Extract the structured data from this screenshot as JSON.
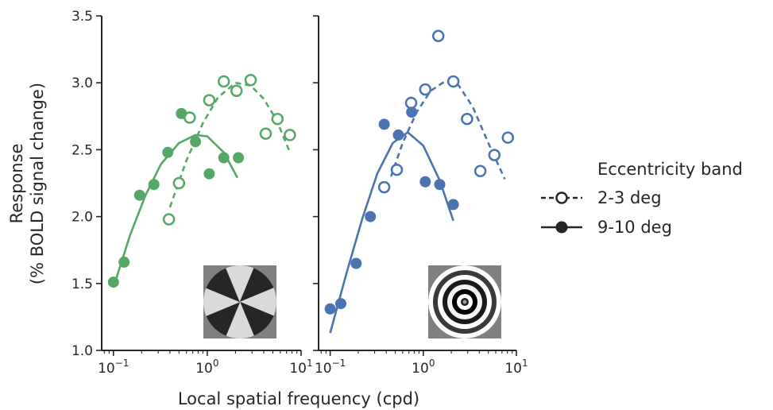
{
  "chart_data": {
    "type": "scatter",
    "xlabel": "Local spatial frequency (cpd)",
    "ylabel_line1": "Response",
    "ylabel_line2": "(% BOLD signal change)",
    "x_scale": "log",
    "xlim": [
      0.075,
      10
    ],
    "ylim": [
      1.0,
      3.5
    ],
    "yticks": [
      1.0,
      1.5,
      2.0,
      2.5,
      3.0,
      3.5
    ],
    "ytick_labels": [
      "1.0",
      "1.5",
      "2.0",
      "2.5",
      "3.0",
      "3.5"
    ],
    "xticks": [
      0.1,
      1,
      10
    ],
    "grid": false,
    "legend": {
      "title": "Eccentricity band",
      "placement": "right",
      "entries": [
        {
          "label": "2-3 deg",
          "marker": "open-circle",
          "line": "dashed"
        },
        {
          "label": "9-10 deg",
          "marker": "filled-circle",
          "line": "solid"
        }
      ]
    },
    "panels": [
      {
        "stimulus": "pinwheel",
        "color": "#55a868",
        "series": [
          {
            "name": "2-3 deg",
            "marker": "open",
            "points": [
              {
                "x": 0.39,
                "y": 1.98
              },
              {
                "x": 0.5,
                "y": 2.25
              },
              {
                "x": 0.65,
                "y": 2.74
              },
              {
                "x": 1.05,
                "y": 2.87
              },
              {
                "x": 1.5,
                "y": 3.01
              },
              {
                "x": 2.05,
                "y": 2.94
              },
              {
                "x": 2.9,
                "y": 3.02
              },
              {
                "x": 4.2,
                "y": 2.62
              },
              {
                "x": 5.6,
                "y": 2.73
              },
              {
                "x": 7.6,
                "y": 2.61
              }
            ],
            "fit": [
              {
                "x": 0.4,
                "y": 2.07
              },
              {
                "x": 0.6,
                "y": 2.42
              },
              {
                "x": 0.9,
                "y": 2.7
              },
              {
                "x": 1.3,
                "y": 2.89
              },
              {
                "x": 2.0,
                "y": 3.0
              },
              {
                "x": 2.9,
                "y": 2.98
              },
              {
                "x": 4.0,
                "y": 2.88
              },
              {
                "x": 5.5,
                "y": 2.72
              },
              {
                "x": 7.5,
                "y": 2.49
              }
            ]
          },
          {
            "name": "9-10 deg",
            "marker": "filled",
            "points": [
              {
                "x": 0.1,
                "y": 1.51
              },
              {
                "x": 0.13,
                "y": 1.66
              },
              {
                "x": 0.19,
                "y": 2.16
              },
              {
                "x": 0.27,
                "y": 2.24
              },
              {
                "x": 0.38,
                "y": 2.48
              },
              {
                "x": 0.53,
                "y": 2.77
              },
              {
                "x": 0.75,
                "y": 2.56
              },
              {
                "x": 1.05,
                "y": 2.32
              },
              {
                "x": 1.5,
                "y": 2.44
              },
              {
                "x": 2.15,
                "y": 2.44
              }
            ],
            "fit": [
              {
                "x": 0.1,
                "y": 1.47
              },
              {
                "x": 0.15,
                "y": 1.86
              },
              {
                "x": 0.22,
                "y": 2.16
              },
              {
                "x": 0.32,
                "y": 2.39
              },
              {
                "x": 0.5,
                "y": 2.55
              },
              {
                "x": 0.75,
                "y": 2.61
              },
              {
                "x": 1.0,
                "y": 2.6
              },
              {
                "x": 1.5,
                "y": 2.48
              },
              {
                "x": 2.1,
                "y": 2.29
              }
            ]
          }
        ]
      },
      {
        "stimulus": "concentric-rings",
        "color": "#4c72b0",
        "series": [
          {
            "name": "2-3 deg",
            "marker": "open",
            "points": [
              {
                "x": 0.38,
                "y": 2.22
              },
              {
                "x": 0.52,
                "y": 2.35
              },
              {
                "x": 0.74,
                "y": 2.85
              },
              {
                "x": 1.05,
                "y": 2.95
              },
              {
                "x": 1.45,
                "y": 3.35
              },
              {
                "x": 2.1,
                "y": 3.01
              },
              {
                "x": 2.95,
                "y": 2.73
              },
              {
                "x": 4.1,
                "y": 2.34
              },
              {
                "x": 5.8,
                "y": 2.46
              },
              {
                "x": 8.1,
                "y": 2.59
              }
            ],
            "fit": [
              {
                "x": 0.45,
                "y": 2.3
              },
              {
                "x": 0.6,
                "y": 2.55
              },
              {
                "x": 0.85,
                "y": 2.78
              },
              {
                "x": 1.2,
                "y": 2.94
              },
              {
                "x": 1.7,
                "y": 3.01
              },
              {
                "x": 2.4,
                "y": 2.98
              },
              {
                "x": 3.4,
                "y": 2.82
              },
              {
                "x": 5.0,
                "y": 2.55
              },
              {
                "x": 7.5,
                "y": 2.28
              }
            ]
          },
          {
            "name": "9-10 deg",
            "marker": "filled",
            "points": [
              {
                "x": 0.1,
                "y": 1.31
              },
              {
                "x": 0.13,
                "y": 1.35
              },
              {
                "x": 0.19,
                "y": 1.65
              },
              {
                "x": 0.27,
                "y": 2.0
              },
              {
                "x": 0.38,
                "y": 2.69
              },
              {
                "x": 0.54,
                "y": 2.61
              },
              {
                "x": 0.75,
                "y": 2.78
              },
              {
                "x": 1.05,
                "y": 2.26
              },
              {
                "x": 1.5,
                "y": 2.24
              },
              {
                "x": 2.1,
                "y": 2.09
              }
            ],
            "fit": [
              {
                "x": 0.1,
                "y": 1.13
              },
              {
                "x": 0.15,
                "y": 1.58
              },
              {
                "x": 0.22,
                "y": 1.98
              },
              {
                "x": 0.32,
                "y": 2.32
              },
              {
                "x": 0.47,
                "y": 2.55
              },
              {
                "x": 0.68,
                "y": 2.63
              },
              {
                "x": 1.0,
                "y": 2.53
              },
              {
                "x": 1.5,
                "y": 2.27
              },
              {
                "x": 2.1,
                "y": 1.97
              }
            ]
          }
        ]
      }
    ]
  }
}
